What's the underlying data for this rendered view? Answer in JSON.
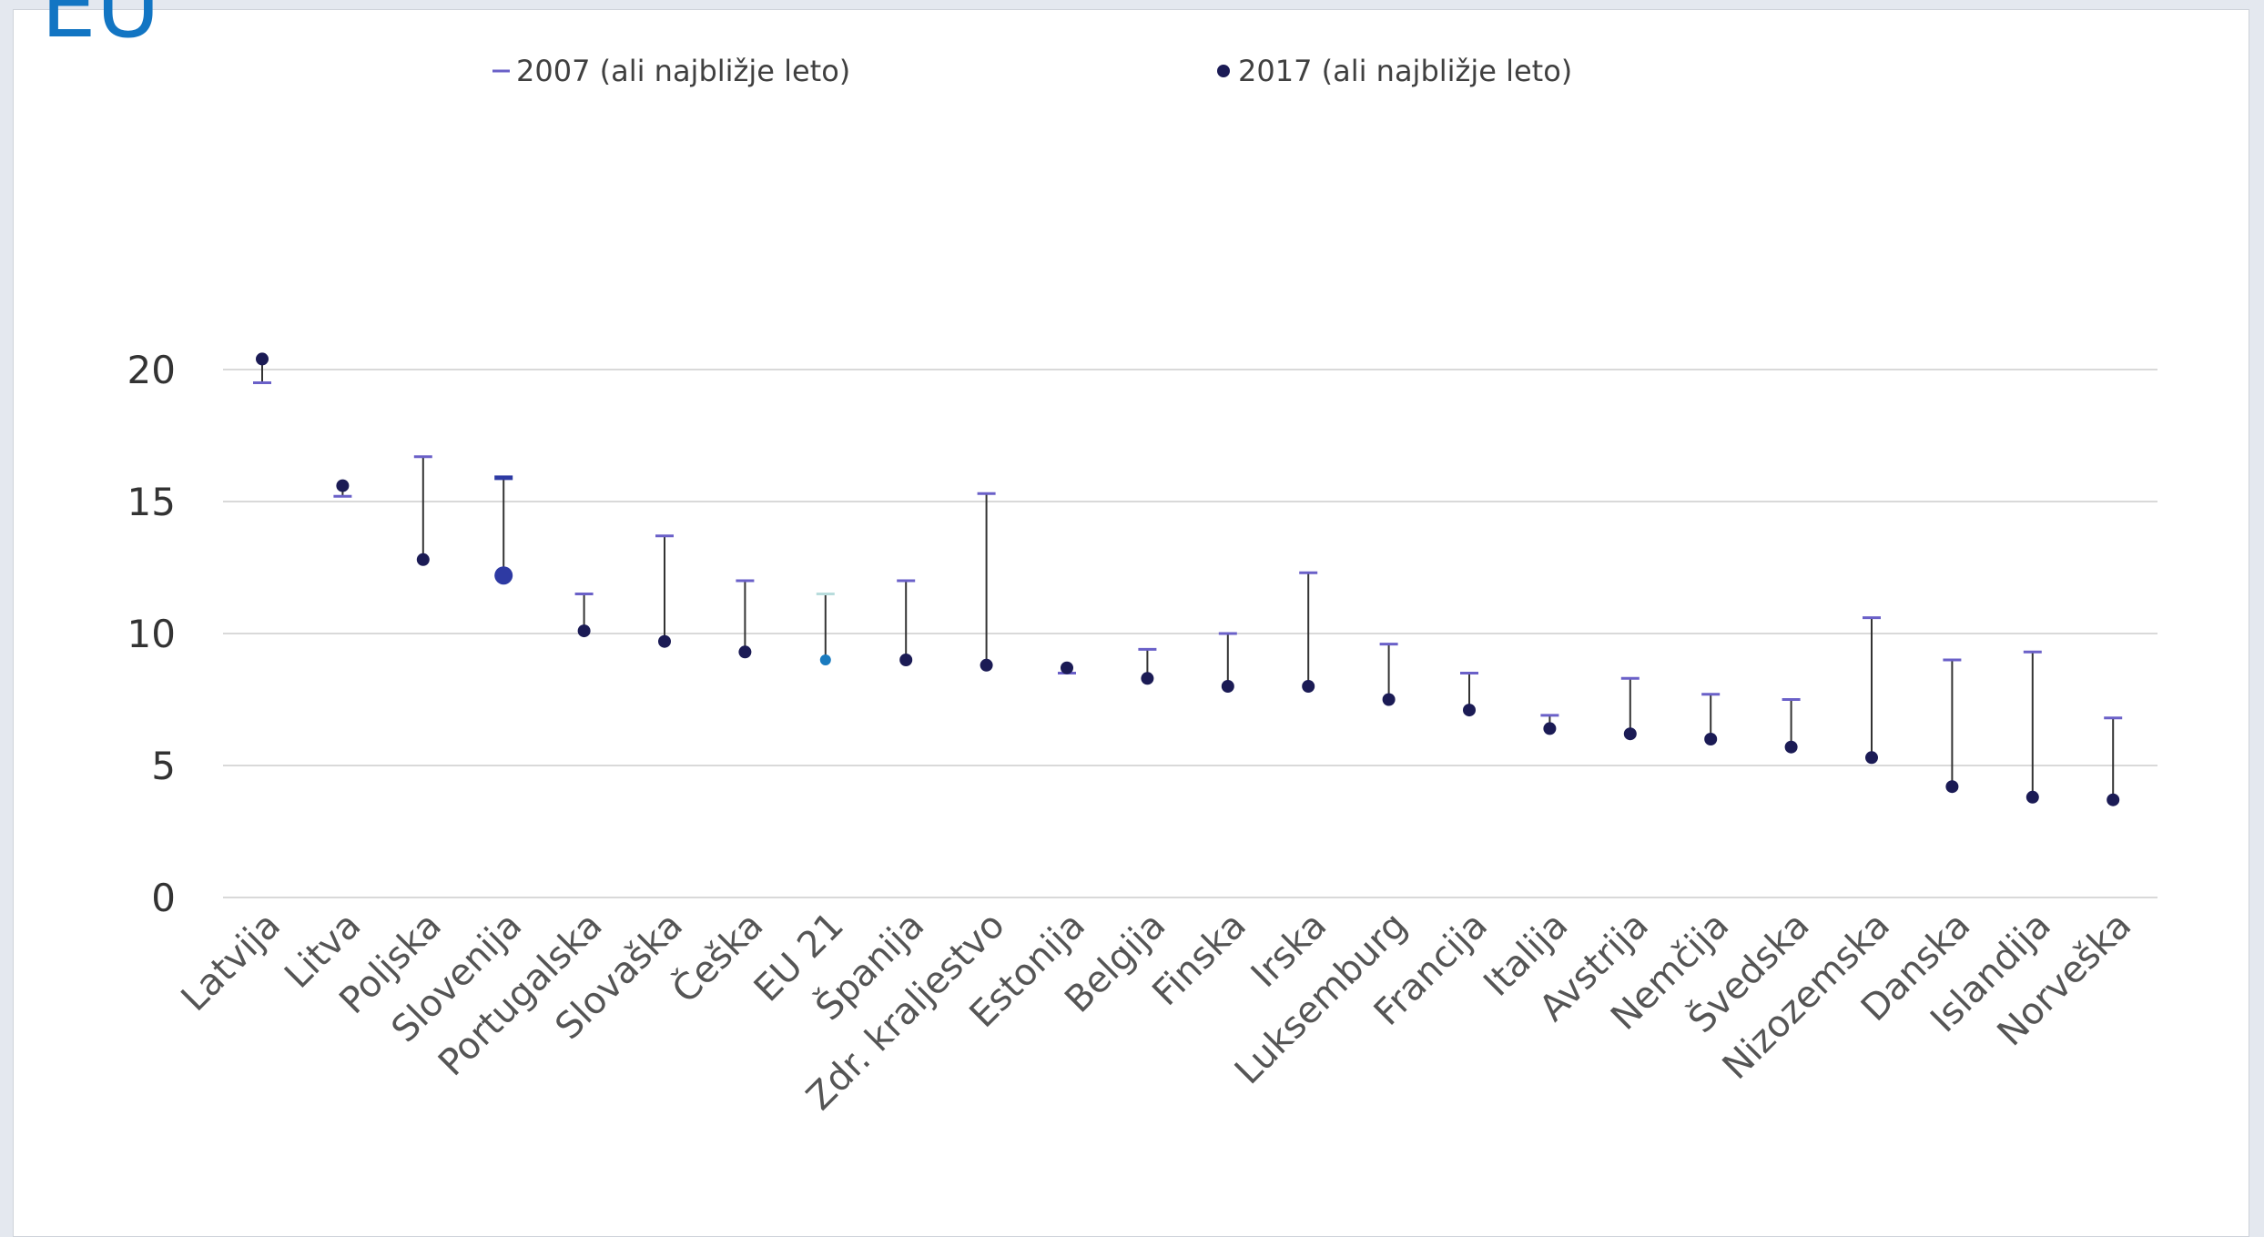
{
  "header": {
    "label": "EU"
  },
  "chart_data": {
    "type": "dot-range",
    "categories": [
      "Latvija",
      "Litva",
      "Poljska",
      "Slovenija",
      "Portugalska",
      "Slovaška",
      "Češka",
      "EU 21",
      "Španija",
      "Zdr. kraljestvo",
      "Estonija",
      "Belgija",
      "Finska",
      "Irska",
      "Luksemburg",
      "Francija",
      "Italija",
      "Avstrija",
      "Nemčija",
      "Švedska",
      "Nizozemska",
      "Danska",
      "Islandija",
      "Norveška"
    ],
    "series": [
      {
        "name": "2007 (ali najbližje leto)",
        "marker": "dash",
        "values": [
          19.5,
          15.2,
          16.7,
          15.9,
          11.5,
          13.7,
          12.0,
          11.5,
          12.0,
          15.3,
          8.5,
          9.4,
          10.0,
          12.3,
          9.6,
          8.5,
          6.9,
          8.3,
          7.7,
          7.5,
          10.6,
          9.0,
          9.3,
          6.8
        ]
      },
      {
        "name": "2017 (ali najbližje leto)",
        "marker": "dot",
        "values": [
          20.4,
          15.6,
          12.8,
          12.2,
          10.1,
          9.7,
          9.3,
          9.0,
          9.0,
          8.8,
          8.7,
          8.3,
          8.0,
          8.0,
          7.5,
          7.1,
          6.4,
          6.2,
          6.0,
          5.7,
          5.3,
          4.2,
          3.8,
          3.7
        ]
      }
    ],
    "highlight": {
      "Slovenija": "#2e3aa3",
      "EU 21": "#1a7bbf"
    },
    "y_ticks": [
      "0",
      "5",
      "10",
      "15",
      "20"
    ],
    "ylim": [
      0,
      20
    ],
    "grid": true,
    "legend": "top",
    "colors": {
      "dash": "#6a60c8",
      "dot": "#1b1b55",
      "connector": "#333333",
      "grid": "#d9d9d9"
    }
  }
}
